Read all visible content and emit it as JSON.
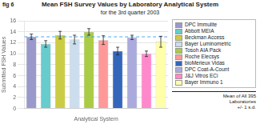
{
  "chart_data": {
    "type": "bar",
    "title": "Mean FSH Survey Values by Laboratory Analytical System",
    "subtitle": "for the 3rd quarter 2003",
    "fig_label": "fig 6",
    "xlabel": "Analytical System",
    "ylabel": "Submitted FSH Values",
    "categories": [
      "DPC Immulite",
      "Abbott MEIA",
      "Beckman Access",
      "Bayer Luminometric",
      "Tosoh AIA Pack",
      "Roche Elecsys",
      "bioMerieux Vidas",
      "DPC Coat-A-Count",
      "J&J Vitros ECi",
      "Bayer Immuno 1"
    ],
    "values": [
      13.1,
      11.8,
      13.4,
      12.6,
      14.0,
      12.5,
      10.5,
      13.0,
      10.0,
      12.2
    ],
    "errors": [
      0.5,
      0.6,
      0.7,
      0.8,
      0.6,
      0.8,
      0.7,
      0.4,
      0.5,
      1.0
    ],
    "colors": [
      "#9999cc",
      "#66cccc",
      "#cccc44",
      "#ccddee",
      "#aacc44",
      "#ff9999",
      "#3366bb",
      "#aaaadd",
      "#ff88cc",
      "#ffffaa"
    ],
    "reference_line": 13.1,
    "ylim": [
      0,
      16
    ],
    "yticks": [
      0,
      2,
      4,
      6,
      8,
      10,
      12,
      14,
      16
    ],
    "grid": true,
    "legend": "right",
    "tick_labels": "y",
    "note": "Mean of All 395\nLaboratories\n+/- 1 s.d."
  }
}
